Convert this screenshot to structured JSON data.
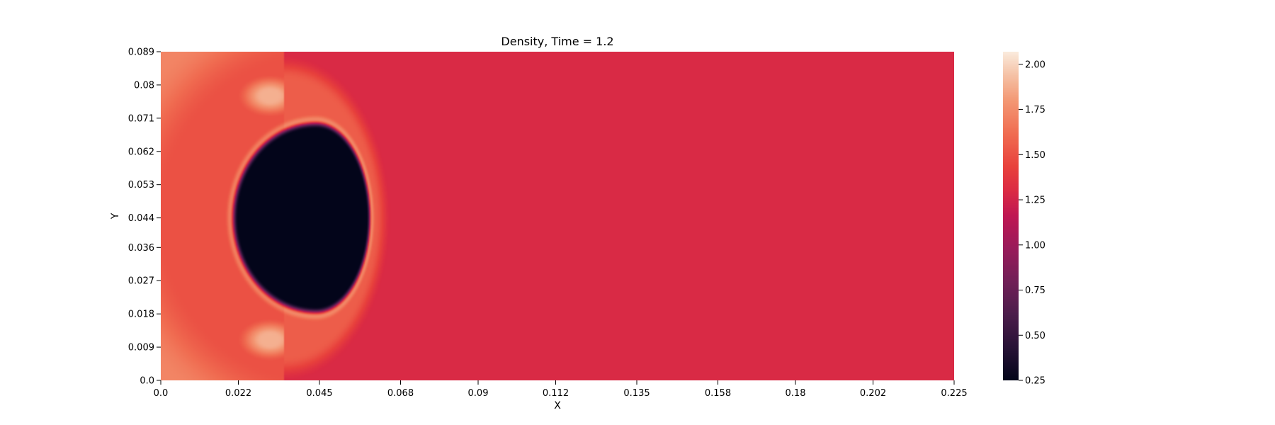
{
  "chart_data": {
    "type": "heatmap",
    "title": "Density, Time = 1.2",
    "xlabel": "X",
    "ylabel": "Y",
    "xlim": [
      0.0,
      0.225
    ],
    "ylim": [
      0.0,
      0.089
    ],
    "x_ticks": [
      "0.0",
      "0.022",
      "0.045",
      "0.068",
      "0.09",
      "0.112",
      "0.135",
      "0.158",
      "0.18",
      "0.202",
      "0.225"
    ],
    "y_ticks": [
      "0.0",
      "0.009",
      "0.018",
      "0.027",
      "0.036",
      "0.044",
      "0.053",
      "0.062",
      "0.071",
      "0.08",
      "0.089"
    ],
    "colorbar": {
      "ticks": [
        "0.25",
        "0.50",
        "0.75",
        "1.00",
        "1.25",
        "1.50",
        "1.75",
        "2.00"
      ],
      "tick_values": [
        0.25,
        0.5,
        0.75,
        1.0,
        1.25,
        1.5,
        1.75,
        2.0
      ],
      "range": [
        0.25,
        2.07
      ],
      "colormap": "rocket"
    },
    "field": {
      "ambient_density": 1.29,
      "post_shock_density": 1.72,
      "shock_front_x": 0.035,
      "bubble": {
        "center_x": 0.044,
        "center_y": 0.044,
        "density": 0.25,
        "left_x": 0.0195,
        "right_x": 0.06,
        "top_y": 0.0715,
        "bottom_y": 0.018
      },
      "refracted_wave_x": 0.062,
      "reflected_wave_density": 1.52,
      "jet_density": 2.07
    }
  }
}
